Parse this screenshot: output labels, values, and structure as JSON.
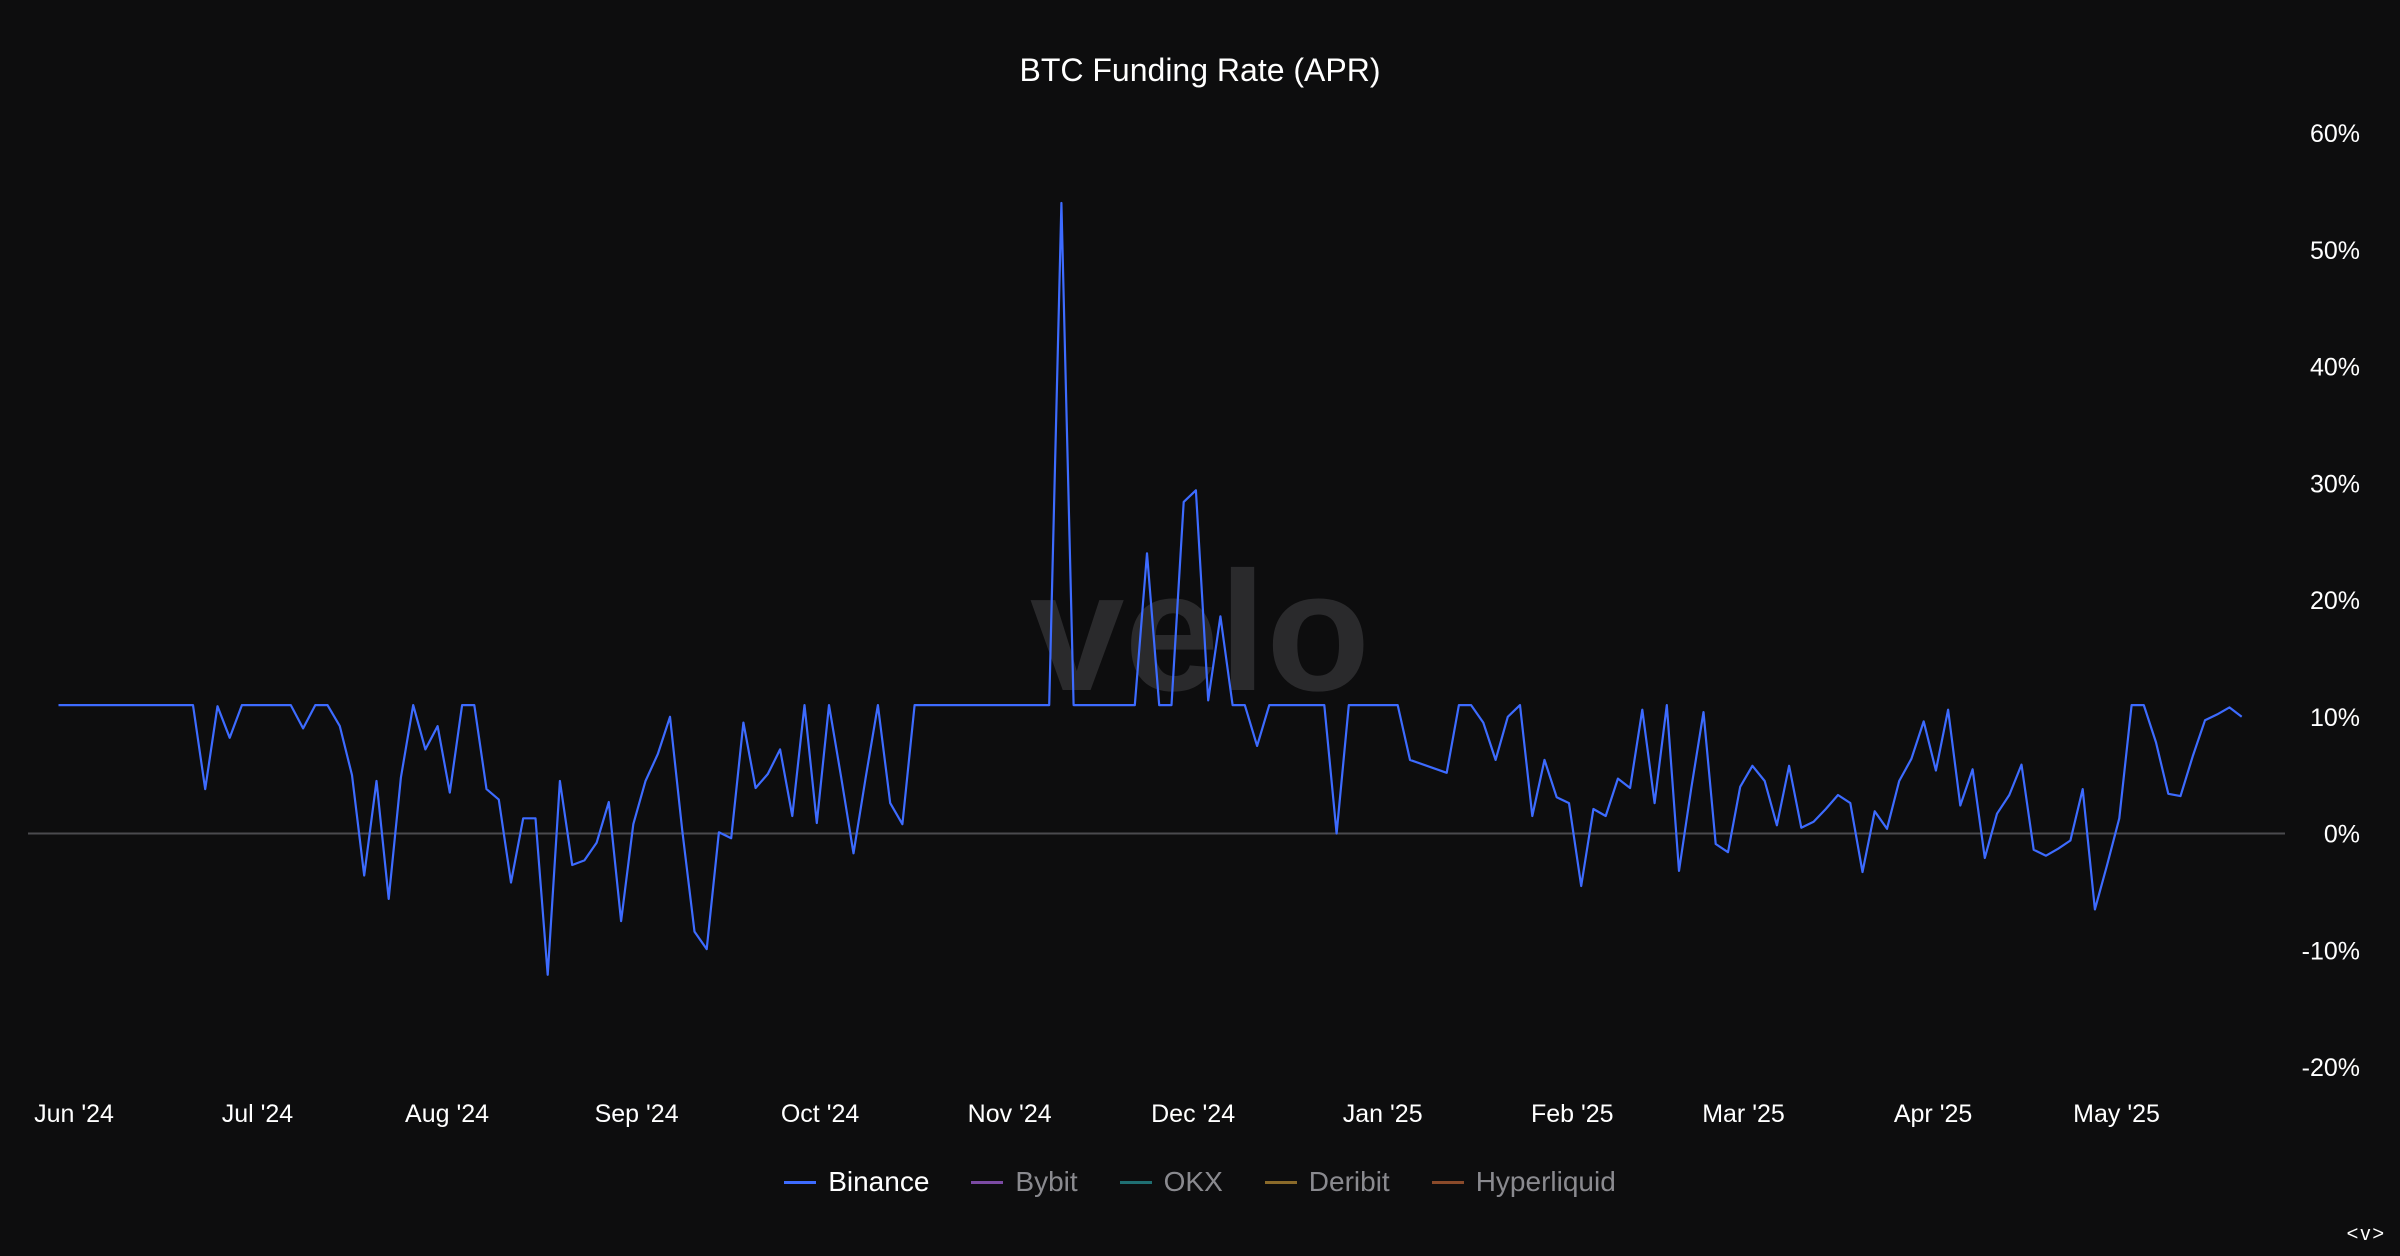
{
  "chart_data": {
    "type": "line",
    "title": "BTC Funding Rate (APR)",
    "xlabel": "",
    "ylabel": "",
    "x_start": "2024-06-01",
    "x_end": "2025-05-31",
    "ylim": [
      -20,
      60
    ],
    "yticks": [
      {
        "value": 60,
        "label": "60%"
      },
      {
        "value": 50,
        "label": "50%"
      },
      {
        "value": 40,
        "label": "40%"
      },
      {
        "value": 30,
        "label": "30%"
      },
      {
        "value": 20,
        "label": "20%"
      },
      {
        "value": 10,
        "label": "10%"
      },
      {
        "value": 0,
        "label": "0%"
      },
      {
        "value": -10,
        "label": "-10%"
      },
      {
        "value": -20,
        "label": "-20%"
      }
    ],
    "xticks": [
      {
        "date": "2024-06-01",
        "label": "Jun '24"
      },
      {
        "date": "2024-07-01",
        "label": "Jul '24"
      },
      {
        "date": "2024-08-01",
        "label": "Aug '24"
      },
      {
        "date": "2024-09-01",
        "label": "Sep '24"
      },
      {
        "date": "2024-10-01",
        "label": "Oct '24"
      },
      {
        "date": "2024-11-01",
        "label": "Nov '24"
      },
      {
        "date": "2024-12-01",
        "label": "Dec '24"
      },
      {
        "date": "2025-01-01",
        "label": "Jan '25"
      },
      {
        "date": "2025-02-01",
        "label": "Feb '25"
      },
      {
        "date": "2025-03-01",
        "label": "Mar '25"
      },
      {
        "date": "2025-04-01",
        "label": "Apr '25"
      },
      {
        "date": "2025-05-01",
        "label": "May '25"
      }
    ],
    "grid": false,
    "zero_line": true,
    "legend_position": "bottom",
    "watermark": "velo",
    "series": [
      {
        "name": "Binance",
        "color": "#3d6bff",
        "points": [
          [
            "2024-06-05",
            11
          ],
          [
            "2024-06-27",
            11
          ],
          [
            "2024-06-29",
            3.8
          ],
          [
            "2024-07-01",
            10.9
          ],
          [
            "2024-07-03",
            8.2
          ],
          [
            "2024-07-05",
            11
          ],
          [
            "2024-07-13",
            11
          ],
          [
            "2024-07-15",
            9
          ],
          [
            "2024-07-17",
            11
          ],
          [
            "2024-07-19",
            11
          ],
          [
            "2024-07-21",
            9.2
          ],
          [
            "2024-07-23",
            5
          ],
          [
            "2024-07-25",
            -3.6
          ],
          [
            "2024-07-27",
            4.5
          ],
          [
            "2024-07-29",
            -5.6
          ],
          [
            "2024-07-31",
            4.8
          ],
          [
            "2024-08-02",
            11
          ],
          [
            "2024-08-04",
            7.2
          ],
          [
            "2024-08-06",
            9.2
          ],
          [
            "2024-08-08",
            3.5
          ],
          [
            "2024-08-10",
            11
          ],
          [
            "2024-08-12",
            11
          ],
          [
            "2024-08-14",
            3.8
          ],
          [
            "2024-08-16",
            2.9
          ],
          [
            "2024-08-18",
            -4.2
          ],
          [
            "2024-08-20",
            1.3
          ],
          [
            "2024-08-22",
            1.3
          ],
          [
            "2024-08-24",
            -12.1
          ],
          [
            "2024-08-26",
            4.5
          ],
          [
            "2024-08-28",
            -2.7
          ],
          [
            "2024-08-30",
            -2.3
          ],
          [
            "2024-09-01",
            -0.8
          ],
          [
            "2024-09-03",
            2.7
          ],
          [
            "2024-09-05",
            -7.5
          ],
          [
            "2024-09-07",
            0.8
          ],
          [
            "2024-09-09",
            4.5
          ],
          [
            "2024-09-11",
            6.8
          ],
          [
            "2024-09-13",
            10
          ],
          [
            "2024-09-15",
            0.3
          ],
          [
            "2024-09-17",
            -8.4
          ],
          [
            "2024-09-19",
            -9.9
          ],
          [
            "2024-09-21",
            0.1
          ],
          [
            "2024-09-23",
            -0.4
          ],
          [
            "2024-09-25",
            9.5
          ],
          [
            "2024-09-27",
            3.9
          ],
          [
            "2024-09-29",
            5.1
          ],
          [
            "2024-10-01",
            7.2
          ],
          [
            "2024-10-03",
            1.5
          ],
          [
            "2024-10-05",
            11
          ],
          [
            "2024-10-07",
            0.9
          ],
          [
            "2024-10-09",
            11
          ],
          [
            "2024-10-11",
            4.8
          ],
          [
            "2024-10-13",
            -1.7
          ],
          [
            "2024-10-15",
            4.8
          ],
          [
            "2024-10-17",
            11
          ],
          [
            "2024-10-19",
            2.6
          ],
          [
            "2024-10-21",
            0.8
          ],
          [
            "2024-10-23",
            11
          ],
          [
            "2024-11-14",
            11
          ],
          [
            "2024-11-16",
            54
          ],
          [
            "2024-11-18",
            11
          ],
          [
            "2024-11-28",
            11
          ],
          [
            "2024-11-30",
            24
          ],
          [
            "2024-12-02",
            11
          ],
          [
            "2024-12-04",
            11
          ],
          [
            "2024-12-06",
            28.4
          ],
          [
            "2024-12-08",
            29.4
          ],
          [
            "2024-12-10",
            11.4
          ],
          [
            "2024-12-12",
            18.6
          ],
          [
            "2024-12-14",
            11
          ],
          [
            "2024-12-16",
            11
          ],
          [
            "2024-12-18",
            7.5
          ],
          [
            "2024-12-20",
            11
          ],
          [
            "2024-12-29",
            11
          ],
          [
            "2024-12-31",
            0
          ],
          [
            "2025-01-02",
            11
          ],
          [
            "2025-01-10",
            11
          ],
          [
            "2025-01-12",
            6.3
          ],
          [
            "2025-01-18",
            5.2
          ],
          [
            "2025-01-20",
            11
          ],
          [
            "2025-01-22",
            11
          ],
          [
            "2025-01-24",
            9.5
          ],
          [
            "2025-01-26",
            6.3
          ],
          [
            "2025-01-28",
            10
          ],
          [
            "2025-01-30",
            11
          ],
          [
            "2025-02-01",
            1.5
          ],
          [
            "2025-02-03",
            6.3
          ],
          [
            "2025-02-05",
            3.1
          ],
          [
            "2025-02-07",
            2.6
          ],
          [
            "2025-02-09",
            -4.5
          ],
          [
            "2025-02-11",
            2.1
          ],
          [
            "2025-02-13",
            1.5
          ],
          [
            "2025-02-15",
            4.7
          ],
          [
            "2025-02-17",
            3.9
          ],
          [
            "2025-02-19",
            10.6
          ],
          [
            "2025-02-21",
            2.6
          ],
          [
            "2025-02-23",
            11
          ],
          [
            "2025-02-25",
            -3.2
          ],
          [
            "2025-02-27",
            3.9
          ],
          [
            "2025-03-01",
            10.4
          ],
          [
            "2025-03-03",
            -0.9
          ],
          [
            "2025-03-05",
            -1.6
          ],
          [
            "2025-03-07",
            4
          ],
          [
            "2025-03-09",
            5.8
          ],
          [
            "2025-03-11",
            4.5
          ],
          [
            "2025-03-13",
            0.7
          ],
          [
            "2025-03-15",
            5.8
          ],
          [
            "2025-03-17",
            0.5
          ],
          [
            "2025-03-19",
            1
          ],
          [
            "2025-03-21",
            2.1
          ],
          [
            "2025-03-23",
            3.3
          ],
          [
            "2025-03-25",
            2.6
          ],
          [
            "2025-03-27",
            -3.3
          ],
          [
            "2025-03-29",
            1.9
          ],
          [
            "2025-03-31",
            0.4
          ],
          [
            "2025-04-02",
            4.5
          ],
          [
            "2025-04-04",
            6.4
          ],
          [
            "2025-04-06",
            9.6
          ],
          [
            "2025-04-08",
            5.4
          ],
          [
            "2025-04-10",
            10.6
          ],
          [
            "2025-04-12",
            2.4
          ],
          [
            "2025-04-14",
            5.5
          ],
          [
            "2025-04-16",
            -2.1
          ],
          [
            "2025-04-18",
            1.7
          ],
          [
            "2025-04-20",
            3.3
          ],
          [
            "2025-04-22",
            5.9
          ],
          [
            "2025-04-24",
            -1.4
          ],
          [
            "2025-04-26",
            -1.9
          ],
          [
            "2025-04-28",
            -1.3
          ],
          [
            "2025-04-30",
            -0.6
          ],
          [
            "2025-05-02",
            3.8
          ],
          [
            "2025-05-04",
            -6.5
          ],
          [
            "2025-05-06",
            -2.7
          ],
          [
            "2025-05-08",
            1.3
          ],
          [
            "2025-05-10",
            11
          ],
          [
            "2025-05-12",
            11
          ],
          [
            "2025-05-14",
            7.8
          ],
          [
            "2025-05-16",
            3.4
          ],
          [
            "2025-05-18",
            3.2
          ],
          [
            "2025-05-20",
            6.6
          ],
          [
            "2025-05-22",
            9.7
          ],
          [
            "2025-05-24",
            10.2
          ],
          [
            "2025-05-26",
            10.8
          ],
          [
            "2025-05-28",
            10
          ]
        ]
      },
      {
        "name": "Bybit",
        "color": "#7b4aa3",
        "points": []
      },
      {
        "name": "OKX",
        "color": "#1f6f72",
        "points": []
      },
      {
        "name": "Deribit",
        "color": "#8a6a2a",
        "points": []
      },
      {
        "name": "Hyperliquid",
        "color": "#8a4a2a",
        "points": []
      }
    ]
  },
  "legend": {
    "items": [
      {
        "label": "Binance",
        "color": "#3d6bff",
        "active": true
      },
      {
        "label": "Bybit",
        "color": "#7b4aa3",
        "active": false
      },
      {
        "label": "OKX",
        "color": "#1f6f72",
        "active": false
      },
      {
        "label": "Deribit",
        "color": "#8a6a2a",
        "active": false
      },
      {
        "label": "Hyperliquid",
        "color": "#8a4a2a",
        "active": false
      }
    ]
  },
  "corner_nav": {
    "label": "<v>",
    "icon": "expand-collapse-icon"
  },
  "colors": {
    "background": "#0d0d0e",
    "zero_line": "#4a4a4e",
    "tick_text": "#ffffff",
    "watermark": "#2a2a2c"
  }
}
